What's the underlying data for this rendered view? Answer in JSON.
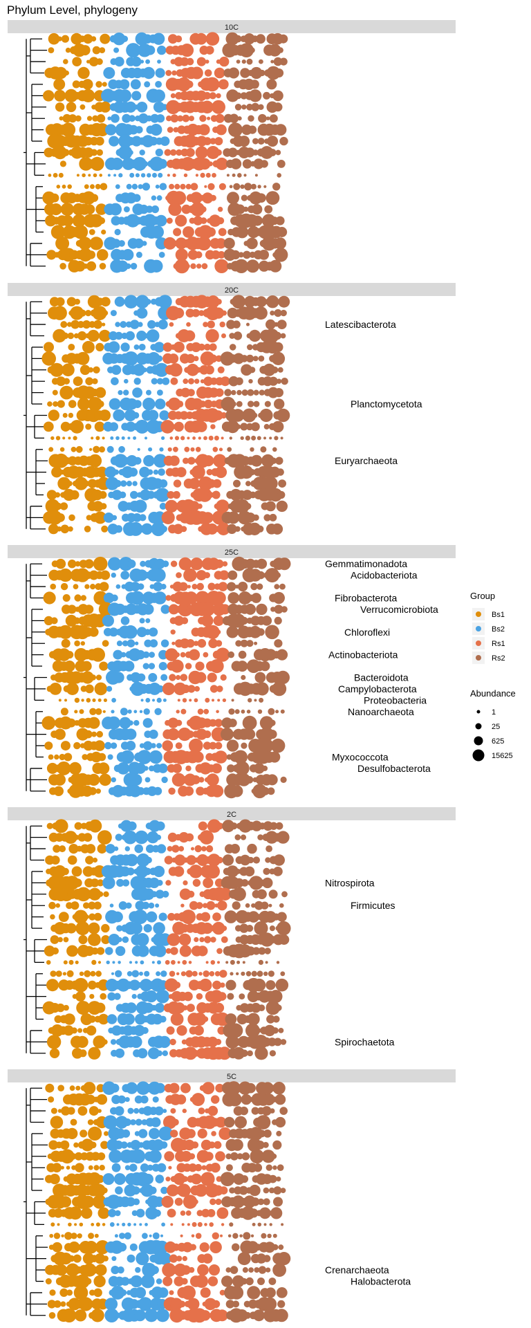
{
  "chart_data": {
    "type": "scatter",
    "title": "Phylum Level, phylogeny",
    "group_legend_title": "Group",
    "abundance_legend_title": "Abundance",
    "groups": [
      {
        "name": "Bs1",
        "color": "#E08E0B"
      },
      {
        "name": "Bs2",
        "color": "#4BA3E3"
      },
      {
        "name": "Rs1",
        "color": "#E5714A"
      },
      {
        "name": "Rs2",
        "color": "#B06E4E"
      }
    ],
    "abundance_levels": [
      {
        "label": "1",
        "value": 1
      },
      {
        "label": "25",
        "value": 25
      },
      {
        "label": "625",
        "value": 625
      },
      {
        "label": "15625",
        "value": 15625
      }
    ],
    "panels": [
      {
        "strip": "10C",
        "labels": []
      },
      {
        "strip": "20C",
        "labels": [
          {
            "text": "Latescibacterota",
            "row": 2.5
          },
          {
            "text": "Planctomycetota",
            "row": 9.5
          },
          {
            "text": "Euryarchaeota",
            "row": 14.5
          }
        ]
      },
      {
        "strip": "25C",
        "labels": [
          {
            "text": "Gemmatimonadota",
            "row": 0.5
          },
          {
            "text": "Acidobacteriota",
            "row": 1.5
          },
          {
            "text": "Fibrobacterota",
            "row": 3.5
          },
          {
            "text": "Verrucomicrobiota",
            "row": 4.5
          },
          {
            "text": "Chloroflexi",
            "row": 6.5
          },
          {
            "text": "Actinobacteriota",
            "row": 8.5
          },
          {
            "text": "Bacteroidota",
            "row": 10.5
          },
          {
            "text": "Campylobacterota",
            "row": 11.5
          },
          {
            "text": "Proteobacteria",
            "row": 12.5
          },
          {
            "text": "Nanoarchaeota",
            "row": 13.5
          },
          {
            "text": "Myxococcota",
            "row": 17.5
          },
          {
            "text": "Desulfobacterota",
            "row": 18.5
          }
        ]
      },
      {
        "strip": "2C",
        "labels": [
          {
            "text": "Nitrospirota",
            "row": 5.5
          },
          {
            "text": "Firmicutes",
            "row": 7.5
          },
          {
            "text": "Spirochaetota",
            "row": 19.5
          }
        ]
      },
      {
        "strip": "5C",
        "labels": [
          {
            "text": "Crenarchaeota",
            "row": 16.5
          },
          {
            "text": "Halobacterota",
            "row": 17.5
          }
        ]
      }
    ]
  }
}
